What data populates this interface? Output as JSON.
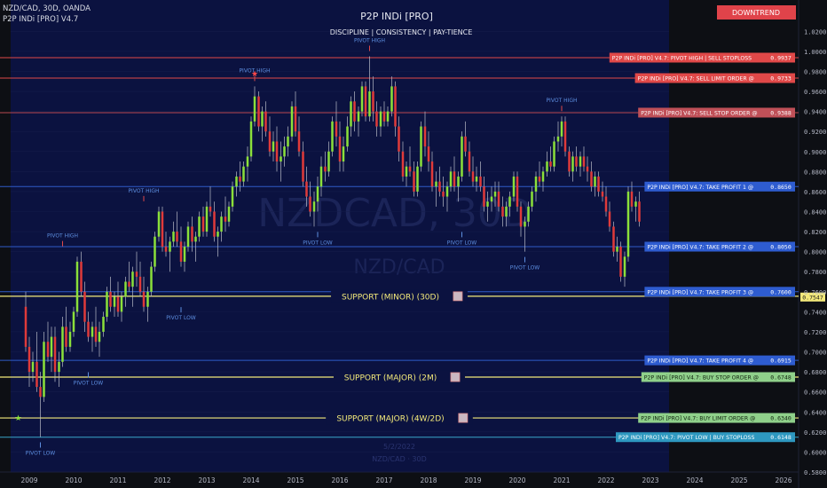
{
  "header": {
    "symbol_line": "NZD/CAD, 30D, OANDA",
    "indicator_line": "P2P INDi [PRO] V4.7",
    "center_title": "P2P INDi [PRO]",
    "center_subtitle": "DISCIPLINE  |  CONSISTENCY  |  PAY-TIENCE",
    "trend_badge": "DOWNTREND"
  },
  "watermark": {
    "symbol": "NZDCAD, 30D",
    "pair": "NZD/CAD",
    "bottom_date": "5/2/2022",
    "bottom_tf": "NZD/CAD · 30D"
  },
  "colors": {
    "bg_left": "#0d0f14",
    "bg_right": "#0b1240",
    "bull": "#8be03a",
    "bear": "#e03a3a",
    "red_line": "#e04848",
    "blue_line": "#2f5bc8",
    "yellow_line": "#f4ea7a",
    "green_line": "#8fbf7a",
    "cyan_line": "#3aa6c8"
  },
  "chart_data": {
    "type": "candlestick",
    "x_axis": {
      "labels": [
        "2009",
        "2010",
        "2011",
        "2012",
        "2013",
        "2014",
        "2015",
        "2016",
        "2017",
        "2018",
        "2019",
        "2020",
        "2021",
        "2022",
        "2023",
        "2024",
        "2025",
        "2026"
      ]
    },
    "y_axis": {
      "min": 0.58,
      "max": 1.03,
      "ticks": [
        "1.0200",
        "1.0000",
        "0.9800",
        "0.9600",
        "0.9400",
        "0.9200",
        "0.9000",
        "0.8800",
        "0.8600",
        "0.8400",
        "0.8200",
        "0.8000",
        "0.7800",
        "0.7600",
        "0.7400",
        "0.7200",
        "0.7000",
        "0.6800",
        "0.6600",
        "0.6400",
        "0.6200",
        "0.6000",
        "0.5800"
      ]
    },
    "candles": [
      [
        2008.92,
        0.745,
        0.76,
        0.7,
        0.705
      ],
      [
        2009.0,
        0.705,
        0.715,
        0.665,
        0.68
      ],
      [
        2009.08,
        0.68,
        0.7,
        0.67,
        0.69
      ],
      [
        2009.17,
        0.69,
        0.72,
        0.66,
        0.665
      ],
      [
        2009.25,
        0.665,
        0.68,
        0.615,
        0.655
      ],
      [
        2009.33,
        0.655,
        0.72,
        0.65,
        0.71
      ],
      [
        2009.42,
        0.71,
        0.73,
        0.69,
        0.695
      ],
      [
        2009.5,
        0.695,
        0.725,
        0.68,
        0.715
      ],
      [
        2009.58,
        0.715,
        0.725,
        0.67,
        0.68
      ],
      [
        2009.67,
        0.68,
        0.7,
        0.665,
        0.69
      ],
      [
        2009.75,
        0.69,
        0.735,
        0.685,
        0.725
      ],
      [
        2009.83,
        0.725,
        0.745,
        0.7,
        0.705
      ],
      [
        2009.92,
        0.705,
        0.73,
        0.7,
        0.72
      ],
      [
        2010.0,
        0.72,
        0.745,
        0.715,
        0.74
      ],
      [
        2010.08,
        0.74,
        0.795,
        0.735,
        0.79
      ],
      [
        2010.17,
        0.79,
        0.8,
        0.755,
        0.76
      ],
      [
        2010.25,
        0.76,
        0.77,
        0.72,
        0.73
      ],
      [
        2010.33,
        0.73,
        0.74,
        0.71,
        0.715
      ],
      [
        2010.42,
        0.715,
        0.73,
        0.7,
        0.725
      ],
      [
        2010.5,
        0.725,
        0.745,
        0.705,
        0.71
      ],
      [
        2010.58,
        0.71,
        0.73,
        0.695,
        0.72
      ],
      [
        2010.67,
        0.72,
        0.74,
        0.715,
        0.735
      ],
      [
        2010.75,
        0.735,
        0.765,
        0.73,
        0.76
      ],
      [
        2010.83,
        0.76,
        0.775,
        0.74,
        0.745
      ],
      [
        2010.92,
        0.745,
        0.76,
        0.735,
        0.755
      ],
      [
        2011.0,
        0.755,
        0.77,
        0.735,
        0.74
      ],
      [
        2011.08,
        0.74,
        0.76,
        0.73,
        0.755
      ],
      [
        2011.17,
        0.755,
        0.775,
        0.745,
        0.77
      ],
      [
        2011.25,
        0.77,
        0.79,
        0.76,
        0.765
      ],
      [
        2011.33,
        0.765,
        0.785,
        0.745,
        0.78
      ],
      [
        2011.42,
        0.78,
        0.8,
        0.765,
        0.775
      ],
      [
        2011.5,
        0.775,
        0.79,
        0.755,
        0.76
      ],
      [
        2011.58,
        0.76,
        0.775,
        0.74,
        0.745
      ],
      [
        2011.67,
        0.745,
        0.765,
        0.73,
        0.76
      ],
      [
        2011.75,
        0.76,
        0.79,
        0.755,
        0.785
      ],
      [
        2011.83,
        0.785,
        0.82,
        0.78,
        0.815
      ],
      [
        2011.92,
        0.815,
        0.845,
        0.81,
        0.84
      ],
      [
        2012.0,
        0.84,
        0.845,
        0.8,
        0.805
      ],
      [
        2012.08,
        0.805,
        0.82,
        0.795,
        0.8
      ],
      [
        2012.17,
        0.8,
        0.815,
        0.78,
        0.81
      ],
      [
        2012.25,
        0.81,
        0.83,
        0.805,
        0.82
      ],
      [
        2012.33,
        0.82,
        0.84,
        0.805,
        0.81
      ],
      [
        2012.42,
        0.81,
        0.825,
        0.785,
        0.79
      ],
      [
        2012.5,
        0.79,
        0.81,
        0.78,
        0.805
      ],
      [
        2012.58,
        0.805,
        0.83,
        0.8,
        0.825
      ],
      [
        2012.67,
        0.825,
        0.835,
        0.8,
        0.81
      ],
      [
        2012.75,
        0.81,
        0.82,
        0.79,
        0.815
      ],
      [
        2012.83,
        0.815,
        0.84,
        0.81,
        0.835
      ],
      [
        2012.92,
        0.835,
        0.845,
        0.815,
        0.82
      ],
      [
        2013.0,
        0.82,
        0.85,
        0.815,
        0.845
      ],
      [
        2013.08,
        0.845,
        0.865,
        0.835,
        0.84
      ],
      [
        2013.17,
        0.84,
        0.85,
        0.81,
        0.815
      ],
      [
        2013.25,
        0.815,
        0.825,
        0.795,
        0.82
      ],
      [
        2013.33,
        0.82,
        0.84,
        0.81,
        0.835
      ],
      [
        2013.42,
        0.835,
        0.855,
        0.82,
        0.83
      ],
      [
        2013.5,
        0.83,
        0.85,
        0.825,
        0.845
      ],
      [
        2013.58,
        0.845,
        0.87,
        0.84,
        0.865
      ],
      [
        2013.67,
        0.865,
        0.88,
        0.855,
        0.875
      ],
      [
        2013.75,
        0.875,
        0.89,
        0.86,
        0.87
      ],
      [
        2013.83,
        0.87,
        0.89,
        0.865,
        0.885
      ],
      [
        2013.92,
        0.885,
        0.905,
        0.87,
        0.895
      ],
      [
        2014.0,
        0.895,
        0.935,
        0.89,
        0.93
      ],
      [
        2014.08,
        0.93,
        0.965,
        0.925,
        0.955
      ],
      [
        2014.17,
        0.955,
        0.96,
        0.92,
        0.925
      ],
      [
        2014.25,
        0.925,
        0.945,
        0.91,
        0.94
      ],
      [
        2014.33,
        0.94,
        0.95,
        0.915,
        0.92
      ],
      [
        2014.42,
        0.92,
        0.935,
        0.895,
        0.9
      ],
      [
        2014.5,
        0.9,
        0.92,
        0.89,
        0.91
      ],
      [
        2014.58,
        0.91,
        0.925,
        0.88,
        0.89
      ],
      [
        2014.67,
        0.89,
        0.91,
        0.87,
        0.895
      ],
      [
        2014.75,
        0.895,
        0.915,
        0.885,
        0.905
      ],
      [
        2014.83,
        0.905,
        0.925,
        0.895,
        0.915
      ],
      [
        2014.92,
        0.915,
        0.95,
        0.91,
        0.945
      ],
      [
        2015.0,
        0.945,
        0.96,
        0.915,
        0.92
      ],
      [
        2015.08,
        0.92,
        0.935,
        0.895,
        0.9
      ],
      [
        2015.17,
        0.9,
        0.91,
        0.865,
        0.87
      ],
      [
        2015.25,
        0.87,
        0.885,
        0.845,
        0.855
      ],
      [
        2015.33,
        0.855,
        0.87,
        0.835,
        0.84
      ],
      [
        2015.42,
        0.84,
        0.86,
        0.825,
        0.85
      ],
      [
        2015.5,
        0.85,
        0.875,
        0.84,
        0.865
      ],
      [
        2015.58,
        0.865,
        0.895,
        0.855,
        0.885
      ],
      [
        2015.67,
        0.885,
        0.9,
        0.87,
        0.88
      ],
      [
        2015.75,
        0.88,
        0.91,
        0.875,
        0.9
      ],
      [
        2015.83,
        0.9,
        0.935,
        0.895,
        0.93
      ],
      [
        2015.92,
        0.93,
        0.95,
        0.905,
        0.915
      ],
      [
        2016.0,
        0.915,
        0.93,
        0.88,
        0.89
      ],
      [
        2016.08,
        0.89,
        0.915,
        0.88,
        0.905
      ],
      [
        2016.17,
        0.905,
        0.935,
        0.9,
        0.925
      ],
      [
        2016.25,
        0.925,
        0.955,
        0.915,
        0.95
      ],
      [
        2016.33,
        0.95,
        0.96,
        0.92,
        0.93
      ],
      [
        2016.42,
        0.93,
        0.945,
        0.915,
        0.94
      ],
      [
        2016.5,
        0.94,
        0.97,
        0.935,
        0.965
      ],
      [
        2016.58,
        0.965,
        0.97,
        0.93,
        0.935
      ],
      [
        2016.67,
        0.935,
        0.995,
        0.93,
        0.96
      ],
      [
        2016.75,
        0.96,
        0.975,
        0.93,
        0.94
      ],
      [
        2016.83,
        0.94,
        0.95,
        0.915,
        0.925
      ],
      [
        2016.92,
        0.925,
        0.945,
        0.915,
        0.94
      ],
      [
        2017.0,
        0.94,
        0.95,
        0.925,
        0.93
      ],
      [
        2017.08,
        0.93,
        0.945,
        0.925,
        0.94
      ],
      [
        2017.17,
        0.94,
        0.975,
        0.935,
        0.965
      ],
      [
        2017.25,
        0.965,
        0.97,
        0.915,
        0.925
      ],
      [
        2017.33,
        0.925,
        0.935,
        0.89,
        0.9
      ],
      [
        2017.42,
        0.9,
        0.91,
        0.87,
        0.875
      ],
      [
        2017.5,
        0.875,
        0.89,
        0.865,
        0.885
      ],
      [
        2017.58,
        0.885,
        0.905,
        0.875,
        0.88
      ],
      [
        2017.67,
        0.88,
        0.89,
        0.855,
        0.86
      ],
      [
        2017.75,
        0.86,
        0.89,
        0.855,
        0.885
      ],
      [
        2017.83,
        0.885,
        0.93,
        0.88,
        0.925
      ],
      [
        2017.92,
        0.925,
        0.94,
        0.895,
        0.905
      ],
      [
        2018.0,
        0.905,
        0.92,
        0.88,
        0.89
      ],
      [
        2018.08,
        0.89,
        0.9,
        0.86,
        0.865
      ],
      [
        2018.17,
        0.865,
        0.88,
        0.845,
        0.87
      ],
      [
        2018.25,
        0.87,
        0.885,
        0.855,
        0.86
      ],
      [
        2018.33,
        0.86,
        0.875,
        0.845,
        0.855
      ],
      [
        2018.42,
        0.855,
        0.87,
        0.84,
        0.865
      ],
      [
        2018.5,
        0.865,
        0.885,
        0.86,
        0.88
      ],
      [
        2018.58,
        0.88,
        0.895,
        0.86,
        0.865
      ],
      [
        2018.67,
        0.865,
        0.88,
        0.85,
        0.875
      ],
      [
        2018.75,
        0.875,
        0.92,
        0.87,
        0.915
      ],
      [
        2018.83,
        0.915,
        0.93,
        0.895,
        0.9
      ],
      [
        2018.92,
        0.9,
        0.91,
        0.875,
        0.88
      ],
      [
        2019.0,
        0.88,
        0.895,
        0.865,
        0.87
      ],
      [
        2019.08,
        0.87,
        0.885,
        0.86,
        0.875
      ],
      [
        2019.17,
        0.875,
        0.89,
        0.86,
        0.865
      ],
      [
        2019.25,
        0.865,
        0.875,
        0.84,
        0.845
      ],
      [
        2019.33,
        0.845,
        0.86,
        0.83,
        0.85
      ],
      [
        2019.42,
        0.85,
        0.865,
        0.84,
        0.855
      ],
      [
        2019.5,
        0.855,
        0.87,
        0.845,
        0.86
      ],
      [
        2019.58,
        0.86,
        0.87,
        0.84,
        0.845
      ],
      [
        2019.67,
        0.845,
        0.855,
        0.825,
        0.835
      ],
      [
        2019.75,
        0.835,
        0.85,
        0.825,
        0.845
      ],
      [
        2019.83,
        0.845,
        0.86,
        0.835,
        0.855
      ],
      [
        2019.92,
        0.855,
        0.88,
        0.85,
        0.875
      ],
      [
        2020.0,
        0.875,
        0.88,
        0.84,
        0.845
      ],
      [
        2020.08,
        0.845,
        0.85,
        0.815,
        0.825
      ],
      [
        2020.17,
        0.825,
        0.835,
        0.8,
        0.83
      ],
      [
        2020.25,
        0.83,
        0.85,
        0.825,
        0.845
      ],
      [
        2020.33,
        0.845,
        0.865,
        0.84,
        0.86
      ],
      [
        2020.42,
        0.86,
        0.88,
        0.85,
        0.875
      ],
      [
        2020.5,
        0.875,
        0.89,
        0.865,
        0.87
      ],
      [
        2020.58,
        0.87,
        0.885,
        0.86,
        0.88
      ],
      [
        2020.67,
        0.88,
        0.9,
        0.875,
        0.89
      ],
      [
        2020.75,
        0.89,
        0.905,
        0.88,
        0.885
      ],
      [
        2020.83,
        0.885,
        0.915,
        0.88,
        0.91
      ],
      [
        2020.92,
        0.91,
        0.93,
        0.9,
        0.915
      ],
      [
        2021.0,
        0.915,
        0.935,
        0.905,
        0.93
      ],
      [
        2021.08,
        0.93,
        0.935,
        0.895,
        0.9
      ],
      [
        2021.17,
        0.9,
        0.905,
        0.875,
        0.88
      ],
      [
        2021.25,
        0.88,
        0.9,
        0.87,
        0.895
      ],
      [
        2021.33,
        0.895,
        0.905,
        0.88,
        0.885
      ],
      [
        2021.42,
        0.885,
        0.9,
        0.875,
        0.895
      ],
      [
        2021.5,
        0.895,
        0.905,
        0.88,
        0.885
      ],
      [
        2021.58,
        0.885,
        0.895,
        0.87,
        0.88
      ],
      [
        2021.67,
        0.88,
        0.89,
        0.86,
        0.865
      ],
      [
        2021.75,
        0.865,
        0.88,
        0.855,
        0.875
      ],
      [
        2021.83,
        0.875,
        0.88,
        0.855,
        0.86
      ],
      [
        2021.92,
        0.86,
        0.87,
        0.85,
        0.855
      ],
      [
        2022.0,
        0.855,
        0.865,
        0.835,
        0.84
      ],
      [
        2022.08,
        0.84,
        0.85,
        0.82,
        0.825
      ],
      [
        2022.17,
        0.825,
        0.83,
        0.795,
        0.8
      ],
      [
        2022.25,
        0.8,
        0.815,
        0.79,
        0.805
      ],
      [
        2022.33,
        0.805,
        0.81,
        0.77,
        0.775
      ],
      [
        2022.42,
        0.775,
        0.8,
        0.765,
        0.795
      ],
      [
        2022.5,
        0.795,
        0.865,
        0.79,
        0.86
      ],
      [
        2022.58,
        0.86,
        0.87,
        0.84,
        0.845
      ],
      [
        2022.67,
        0.845,
        0.855,
        0.83,
        0.85
      ],
      [
        2022.75,
        0.85,
        0.86,
        0.825,
        0.83
      ]
    ],
    "levels": [
      {
        "value": 0.9937,
        "label": "P2P INDi [PRO] V4.7: PIVOT HIGH | SELL STOPLOSS",
        "price": "0.9937",
        "kind": "red"
      },
      {
        "value": 0.9733,
        "label": "P2P INDi [PRO] V4.7: SELL LIMIT ORDER @",
        "price": "0.9733",
        "kind": "red"
      },
      {
        "value": 0.9388,
        "label": "P2P INDi [PRO] V4.7: SELL STOP ORDER @",
        "price": "0.9388",
        "kind": "redsoft"
      },
      {
        "value": 0.865,
        "label": "P2P INDi [PRO] V4.7: TAKE PROFIT 1 @",
        "price": "0.8650",
        "kind": "blue"
      },
      {
        "value": 0.805,
        "label": "P2P INDi [PRO] V4.7: TAKE PROFIT 2 @",
        "price": "0.8050",
        "kind": "blue"
      },
      {
        "value": 0.76,
        "label": "P2P INDi [PRO] V4.7: TAKE PROFIT 3 @",
        "price": "0.7600",
        "kind": "blue"
      },
      {
        "value": 0.6915,
        "label": "P2P INDi [PRO] V4.7: TAKE PROFIT 4 @",
        "price": "0.6915",
        "kind": "blue"
      },
      {
        "value": 0.6748,
        "label": "P2P INDi [PRO] V4.7: BUY STOP ORDER @",
        "price": "0.6748",
        "kind": "green"
      },
      {
        "value": 0.634,
        "label": "P2P INDi [PRO] V4.7: BUY LIMIT ORDER @",
        "price": "0.6340",
        "kind": "green"
      },
      {
        "value": 0.6148,
        "label": "P2P INDi [PRO] V4.7: PIVOT LOW | BUY STOPLOSS",
        "price": "0.6148",
        "kind": "cyan"
      }
    ],
    "supports": [
      {
        "value": 0.7555,
        "label": "SUPPORT (MINOR) (30D)"
      },
      {
        "value": 0.6748,
        "label": "SUPPORT (MAJOR) (2M)"
      },
      {
        "value": 0.634,
        "label": "SUPPORT (MAJOR) (4W/2D)"
      }
    ],
    "axis_extra_tag": "0.7547",
    "pivots": [
      {
        "type": "high",
        "label": "PIVOT HIGH",
        "x": 2014.08,
        "y": 0.965
      },
      {
        "type": "high",
        "label": "PIVOT HIGH",
        "x": 2016.67,
        "y": 0.995
      },
      {
        "type": "high",
        "label": "PIVOT HIGH",
        "x": 2021.0,
        "y": 0.935
      },
      {
        "type": "high",
        "label": "PIVOT HIGH",
        "x": 2011.58,
        "y": 0.845
      },
      {
        "type": "high",
        "label": "PIVOT HIGH",
        "x": 2009.75,
        "y": 0.8
      },
      {
        "type": "low",
        "label": "PIVOT LOW",
        "x": 2015.5,
        "y": 0.825
      },
      {
        "type": "low",
        "label": "PIVOT LOW",
        "x": 2018.75,
        "y": 0.825
      },
      {
        "type": "low",
        "label": "PIVOT LOW",
        "x": 2020.17,
        "y": 0.8
      },
      {
        "type": "low",
        "label": "PIVOT LOW",
        "x": 2012.42,
        "y": 0.75
      },
      {
        "type": "low",
        "label": "PIVOT LOW",
        "x": 2010.33,
        "y": 0.685
      },
      {
        "type": "low",
        "label": "PIVOT LOW",
        "x": 2009.25,
        "y": 0.615
      }
    ]
  }
}
